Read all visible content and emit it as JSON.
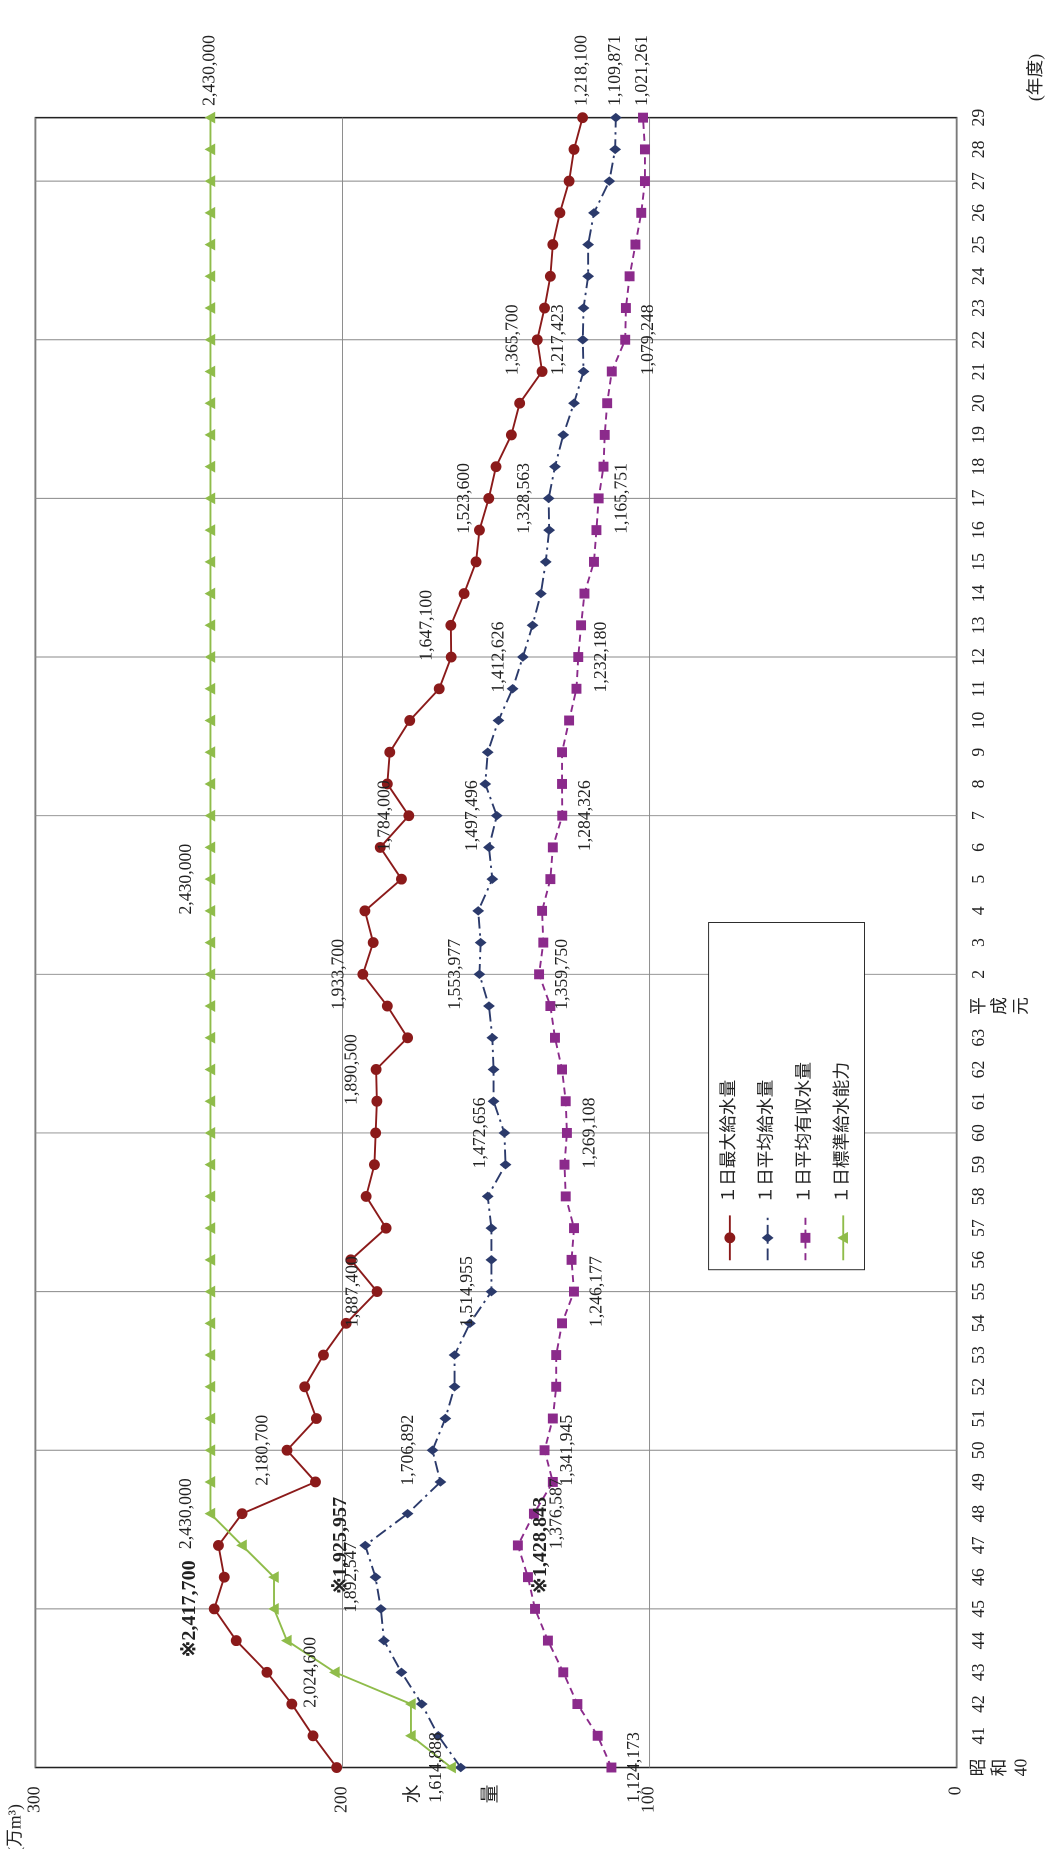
{
  "chart_data": {
    "type": "line",
    "y_axis_label": "水量",
    "y_unit_label": "(万m³)",
    "x_axis_label": "(年度)",
    "categories": [
      "昭和40",
      "41",
      "42",
      "43",
      "44",
      "45",
      "46",
      "47",
      "48",
      "49",
      "50",
      "51",
      "52",
      "53",
      "54",
      "55",
      "56",
      "57",
      "58",
      "59",
      "60",
      "61",
      "62",
      "63",
      "平成元",
      "2",
      "3",
      "4",
      "5",
      "6",
      "7",
      "8",
      "9",
      "10",
      "11",
      "12",
      "13",
      "14",
      "15",
      "16",
      "17",
      "18",
      "19",
      "20",
      "21",
      "22",
      "23",
      "24",
      "25",
      "26",
      "27",
      "28",
      "29"
    ],
    "ylim": [
      0,
      300
    ],
    "yticks": [
      0,
      100,
      200,
      300
    ],
    "grid": true,
    "legend": "lower center",
    "series": [
      {
        "name": "１日最大給水量",
        "color": "#8b1a1a",
        "marker": "circle",
        "line_style": "solid",
        "values": [
          201.9,
          209.6,
          216.5,
          224.6,
          234.6,
          241.77,
          238.5,
          240.4,
          232.7,
          208.8,
          218.07,
          208.5,
          212.3,
          206.2,
          198.8,
          188.74,
          197.3,
          185.8,
          192.3,
          189.6,
          189.2,
          188.8,
          189.05,
          178.8,
          185.4,
          193.37,
          190.0,
          192.7,
          180.8,
          187.7,
          178.4,
          185.4,
          184.6,
          178.1,
          168.5,
          164.6,
          164.71,
          160.4,
          156.5,
          155.4,
          152.36,
          150.0,
          145.0,
          142.3,
          135.0,
          136.57,
          134.2,
          132.3,
          131.5,
          129.2,
          126.2,
          124.6,
          121.81
        ],
        "value_labels": [
          null,
          null,
          null,
          null,
          null,
          "※2,417,700",
          null,
          null,
          null,
          null,
          "2,180,700",
          null,
          null,
          null,
          null,
          "1,887,400",
          null,
          null,
          null,
          null,
          null,
          null,
          "1,890,500",
          null,
          null,
          "1,933,700",
          null,
          null,
          null,
          null,
          "1,784,000",
          null,
          null,
          null,
          null,
          null,
          "1,647,100",
          null,
          null,
          null,
          "1,523,600",
          null,
          null,
          null,
          null,
          "1,365,700",
          null,
          null,
          null,
          null,
          null,
          null,
          "1,218,100"
        ]
      },
      {
        "name": "１日平均給水量",
        "color": "#2b3a6b",
        "marker": "diamond",
        "line_style": "dashdot",
        "values": [
          161.4888,
          168.8,
          174.2,
          180.8,
          186.5,
          187.5,
          189.2547,
          192.5957,
          178.8,
          168.1,
          170.6892,
          166.5,
          163.5,
          163.5,
          158.5,
          151.4955,
          151.5,
          151.5,
          152.7,
          146.9,
          147.2656,
          150.8,
          150.8,
          151.2,
          152.3,
          155.3977,
          155.0,
          155.8,
          151.2,
          152.3,
          149.7496,
          153.5,
          152.7,
          149.2,
          144.6,
          141.2626,
          138.1,
          135.4,
          133.8,
          132.7,
          132.8563,
          130.8,
          128.1,
          124.6,
          121.5,
          121.7423,
          121.5,
          120.0,
          120.0,
          118.1,
          113.1,
          111.2,
          110.9871
        ],
        "value_labels": [
          "1,614,888",
          null,
          null,
          null,
          null,
          null,
          "1,892,547",
          "※1,925,957",
          null,
          null,
          "1,706,892",
          null,
          null,
          null,
          null,
          "1,514,955",
          null,
          null,
          null,
          null,
          "1,472,656",
          null,
          null,
          null,
          null,
          "1,553,977",
          null,
          null,
          null,
          null,
          "1,497,496",
          null,
          null,
          null,
          null,
          "1,412,626",
          null,
          null,
          null,
          null,
          "1,328,563",
          null,
          null,
          null,
          null,
          "1,217,423",
          null,
          null,
          null,
          null,
          null,
          null,
          "1,109,871"
        ]
      },
      {
        "name": "１日平均有収水量",
        "color": "#8b2a8b",
        "marker": "square",
        "line_style": "dashed",
        "values": [
          112.4173,
          116.9,
          123.5,
          128.1,
          133.1,
          137.3,
          139.6,
          142.8843,
          137.6587,
          131.5,
          134.1945,
          131.5,
          130.4,
          130.4,
          128.5,
          124.6177,
          125.4,
          124.6,
          127.3,
          127.7,
          126.9108,
          127.3,
          128.5,
          130.8,
          132.3,
          135.975,
          134.6,
          135.0,
          132.3,
          131.5,
          128.4326,
          128.5,
          128.5,
          126.2,
          123.8,
          123.218,
          122.3,
          121.2,
          118.1,
          117.3,
          116.5751,
          115.0,
          114.6,
          113.8,
          112.3,
          107.9248,
          107.7,
          106.5,
          104.6,
          102.7,
          101.5,
          101.5,
          102.1261
        ],
        "value_labels": [
          "1,124,173",
          null,
          null,
          null,
          null,
          null,
          null,
          "※1,428,843",
          "1,376,587",
          null,
          "1,341,945",
          null,
          null,
          null,
          null,
          "1,246,177",
          null,
          null,
          null,
          null,
          "1,269,108",
          null,
          null,
          null,
          null,
          "1,359,750",
          null,
          null,
          null,
          null,
          "1,284,326",
          null,
          null,
          null,
          null,
          "1,232,180",
          null,
          null,
          null,
          null,
          "1,165,751",
          null,
          null,
          null,
          null,
          "1,079,248",
          null,
          null,
          null,
          null,
          null,
          null,
          "1,021,261"
        ]
      },
      {
        "name": "１日標準給水能力",
        "color": "#8fbc4a",
        "marker": "triangle",
        "line_style": "solid",
        "values": [
          164.6,
          177.7,
          177.7,
          202.46,
          218.1,
          222.3,
          222.3,
          232.7,
          243,
          243,
          243,
          243,
          243,
          243,
          243,
          243,
          243,
          243,
          243,
          243,
          243,
          243,
          243,
          243,
          243,
          243,
          243,
          243,
          243,
          243,
          243,
          243,
          243,
          243,
          243,
          243,
          243,
          243,
          243,
          243,
          243,
          243,
          243,
          243,
          243,
          243,
          243,
          243,
          243,
          243,
          243,
          243,
          243
        ],
        "value_labels": [
          null,
          null,
          null,
          "2,024,600",
          null,
          null,
          null,
          null,
          "2,430,000",
          null,
          null,
          null,
          null,
          null,
          null,
          null,
          null,
          null,
          null,
          null,
          null,
          null,
          null,
          null,
          null,
          null,
          null,
          null,
          "2,430,000",
          null,
          null,
          null,
          null,
          null,
          null,
          null,
          null,
          null,
          null,
          null,
          null,
          null,
          null,
          null,
          null,
          null,
          null,
          null,
          null,
          null,
          null,
          null,
          "2,430,000"
        ]
      }
    ]
  }
}
